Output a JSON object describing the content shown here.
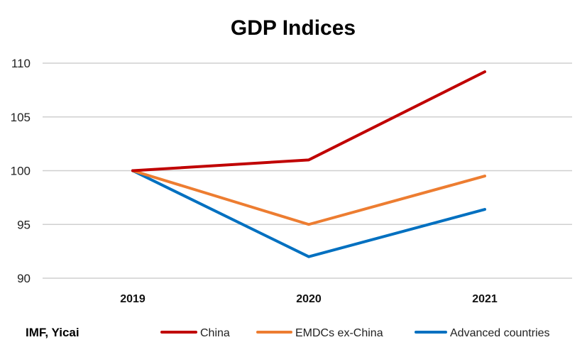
{
  "chart_data": {
    "type": "line",
    "title": "GDP Indices",
    "categories": [
      "2019",
      "2020",
      "2021"
    ],
    "ylim": [
      90,
      110
    ],
    "yticks": [
      110,
      105,
      100,
      95,
      90
    ],
    "grid": true,
    "legend_position": "bottom",
    "source": "IMF, Yicai",
    "series": [
      {
        "name": "China",
        "values": [
          100,
          101,
          109.2
        ],
        "color": "#c00000"
      },
      {
        "name": "EMDCs ex-China",
        "values": [
          100,
          95,
          99.5
        ],
        "color": "#ed7d31"
      },
      {
        "name": "Advanced countries",
        "values": [
          100,
          92,
          96.4
        ],
        "color": "#0070c0"
      }
    ]
  }
}
